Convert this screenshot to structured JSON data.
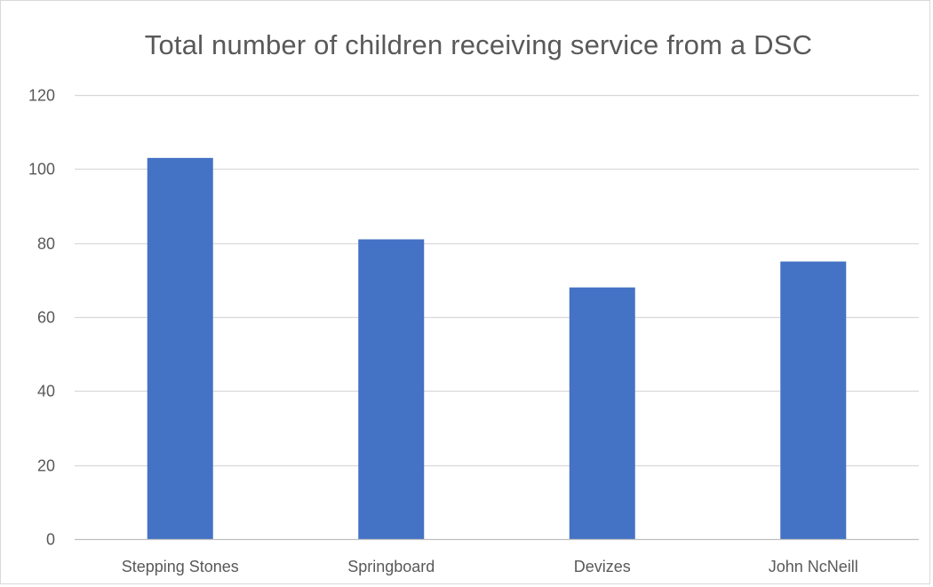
{
  "chart_data": {
    "type": "bar",
    "title": "Total number of children receiving service from a DSC",
    "categories": [
      "Stepping Stones",
      "Springboard",
      "Devizes",
      "John NcNeill"
    ],
    "values": [
      103,
      81,
      68,
      75
    ],
    "ylim": [
      0,
      120
    ],
    "yticks": [
      0,
      20,
      40,
      60,
      80,
      100,
      120
    ],
    "ytick_labels": [
      "0",
      "20",
      "40",
      "60",
      "80",
      "100",
      "120"
    ],
    "grid": true,
    "legend": "none",
    "colors": {
      "bar": "#4472c4",
      "grid": "#d9d9d9",
      "axis": "#bfbfbf",
      "text": "#595959"
    }
  }
}
